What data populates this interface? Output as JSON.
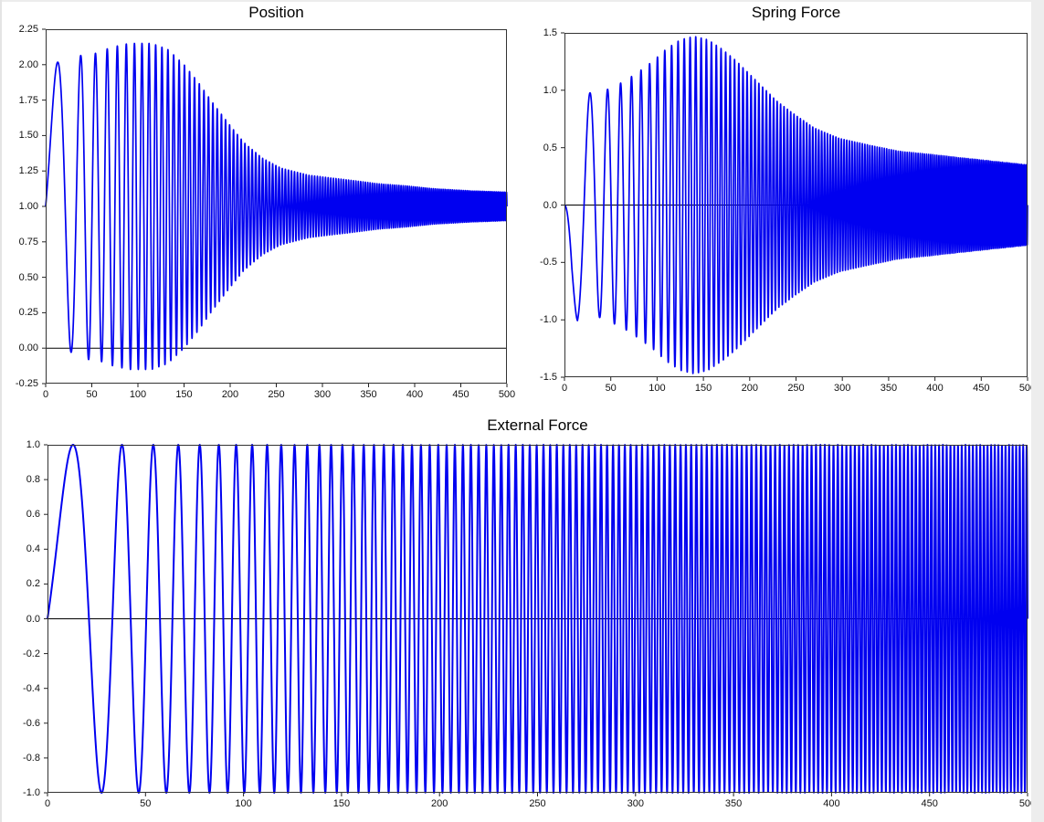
{
  "window": {
    "background_color": "#ffffff",
    "right_strip_color": "#ededed"
  },
  "chart_data": [
    {
      "id": "position",
      "type": "line",
      "title": "Position",
      "line_color": "#0000f0",
      "zero_line": true,
      "x_axis": {
        "min": 0,
        "max": 500,
        "tick_labels": [
          "0",
          "50",
          "100",
          "150",
          "200",
          "250",
          "300",
          "350",
          "400",
          "450",
          "500"
        ]
      },
      "y_axis": {
        "min": -0.25,
        "max": 2.25,
        "tick_labels": [
          "2.25",
          "2.00",
          "1.75",
          "1.50",
          "1.25",
          "1.00",
          "0.75",
          "0.50",
          "0.25",
          "0.00",
          "-0.25"
        ]
      },
      "signal": {
        "description": "position = offset + sign * envelope(t) * sin(2*pi*(f0*t + c*t^2)); chirped drive sweeping through resonance",
        "offset": 1.0,
        "sign": 1,
        "chirp_phase_cycles": {
          "f0": 0.012,
          "c": 0.00055
        },
        "envelope_points": [
          [
            0,
            1.0
          ],
          [
            15,
            1.02
          ],
          [
            29,
            1.03
          ],
          [
            42,
            1.08
          ],
          [
            55,
            1.08
          ],
          [
            70,
            1.12
          ],
          [
            90,
            1.15
          ],
          [
            115,
            1.15
          ],
          [
            132,
            1.11
          ],
          [
            150,
            1.0
          ],
          [
            165,
            0.88
          ],
          [
            180,
            0.74
          ],
          [
            200,
            0.57
          ],
          [
            215,
            0.45
          ],
          [
            235,
            0.34
          ],
          [
            255,
            0.27
          ],
          [
            285,
            0.22
          ],
          [
            310,
            0.2
          ],
          [
            330,
            0.185
          ],
          [
            360,
            0.16
          ],
          [
            390,
            0.145
          ],
          [
            420,
            0.125
          ],
          [
            460,
            0.11
          ],
          [
            500,
            0.1
          ]
        ]
      },
      "key_values": {
        "start_value": 1.0,
        "first_peak": 2.02,
        "envelope_max": 2.15,
        "envelope_min": -0.15,
        "end_upper": 1.1,
        "end_lower": 0.9
      }
    },
    {
      "id": "spring-force",
      "type": "line",
      "title": "Spring Force",
      "line_color": "#0000f0",
      "zero_line": true,
      "x_axis": {
        "min": 0,
        "max": 500,
        "tick_labels": [
          "0",
          "50",
          "100",
          "150",
          "200",
          "250",
          "300",
          "350",
          "400",
          "450",
          "500"
        ]
      },
      "y_axis": {
        "min": -1.5,
        "max": 1.5,
        "tick_labels": [
          "1.5",
          "1.0",
          "0.5",
          "0.0",
          "-0.5",
          "-1.0",
          "-1.5"
        ]
      },
      "signal": {
        "description": "spring force = -envelope(t) * sin(2*pi*(f0*t + c*t^2)); same chirp phase as drive",
        "offset": 0.0,
        "sign": -1,
        "chirp_phase_cycles": {
          "f0": 0.012,
          "c": 0.00055
        },
        "envelope_points": [
          [
            0,
            0.0
          ],
          [
            8,
            0.75
          ],
          [
            14,
            1.02
          ],
          [
            25,
            0.98
          ],
          [
            35,
            0.97
          ],
          [
            50,
            1.02
          ],
          [
            65,
            1.08
          ],
          [
            80,
            1.16
          ],
          [
            95,
            1.25
          ],
          [
            110,
            1.36
          ],
          [
            125,
            1.44
          ],
          [
            140,
            1.47
          ],
          [
            155,
            1.44
          ],
          [
            170,
            1.36
          ],
          [
            185,
            1.26
          ],
          [
            200,
            1.14
          ],
          [
            215,
            1.02
          ],
          [
            230,
            0.9
          ],
          [
            250,
            0.78
          ],
          [
            270,
            0.67
          ],
          [
            297,
            0.58
          ],
          [
            330,
            0.52
          ],
          [
            360,
            0.47
          ],
          [
            396,
            0.44
          ],
          [
            430,
            0.41
          ],
          [
            465,
            0.38
          ],
          [
            500,
            0.35
          ]
        ]
      },
      "key_values": {
        "start_value": 0.0,
        "first_trough": -1.02,
        "envelope_max": 1.47,
        "envelope_min": -1.47,
        "end_amplitude": 0.35
      }
    },
    {
      "id": "external-force",
      "type": "line",
      "title": "External Force",
      "line_color": "#0000f0",
      "zero_line": true,
      "x_axis": {
        "min": 0,
        "max": 500,
        "tick_labels": [
          "0",
          "50",
          "100",
          "150",
          "200",
          "250",
          "300",
          "350",
          "400",
          "450",
          "500"
        ]
      },
      "y_axis": {
        "min": -1.0,
        "max": 1.0,
        "tick_labels": [
          "1.0",
          "0.8",
          "0.6",
          "0.4",
          "0.2",
          "0.0",
          "-0.2",
          "-0.4",
          "-0.6",
          "-0.8",
          "-1.0"
        ]
      },
      "signal": {
        "description": "external force = sin(2*pi*(f0*t + c*t^2)); unit-amplitude linear chirp, frequency increasing with time",
        "offset": 0.0,
        "sign": 1,
        "chirp_phase_cycles": {
          "f0": 0.012,
          "c": 0.00055
        },
        "envelope_points": [
          [
            0,
            1.0
          ],
          [
            500,
            1.0
          ]
        ]
      },
      "key_values": {
        "amplitude": 1.0,
        "first_peak_t": 15,
        "first_trough_t": 29
      }
    }
  ]
}
